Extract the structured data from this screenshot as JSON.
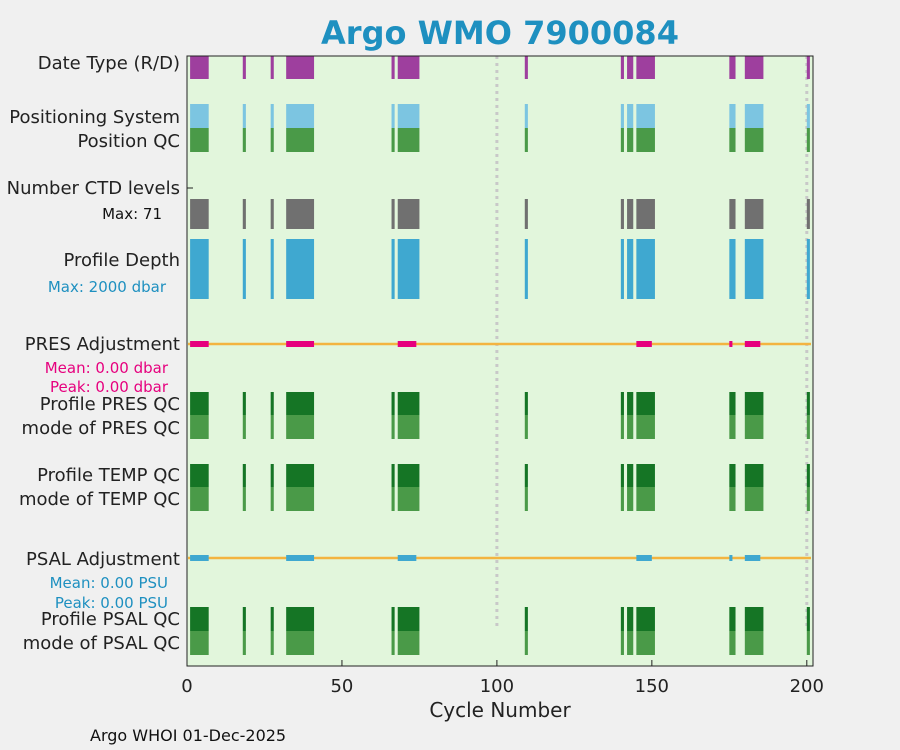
{
  "chart_data": {
    "type": "heatmap",
    "title": "Argo WMO 7900084",
    "xlabel": "Cycle Number",
    "xlim": [
      0,
      202
    ],
    "xticks": [
      0,
      50,
      100,
      150,
      200
    ],
    "footer": "Argo WHOI 01-Dec-2025",
    "dashed_markers": [
      100,
      200
    ],
    "row_labels": {
      "date_type": "Date Type (R/D)",
      "positioning": "Positioning System",
      "position_qc": "Position QC",
      "ctd_levels": "Number CTD levels",
      "ctd_max": "Max: 71",
      "profile_depth": "Profile Depth",
      "depth_max": "Max: 2000 dbar",
      "pres_adj": "PRES Adjustment",
      "pres_mean": "Mean: 0.00 dbar",
      "pres_peak": "Peak: 0.00 dbar",
      "pres_qc": "Profile PRES QC",
      "pres_mode": "mode of PRES QC",
      "temp_qc": "Profile TEMP QC",
      "temp_mode": "mode of TEMP QC",
      "psal_adj": "PSAL Adjustment",
      "psal_mean": "Mean: 0.00 PSU",
      "psal_peak": "Peak: 0.00 PSU",
      "psal_qc": "Profile PSAL QC",
      "psal_mode": "mode of PSAL QC"
    },
    "profile_cycle_ranges": [
      [
        1,
        7
      ],
      [
        18,
        19
      ],
      [
        27,
        28
      ],
      [
        32,
        41
      ],
      [
        66,
        67
      ],
      [
        68,
        75
      ],
      [
        109,
        110
      ],
      [
        140,
        141
      ],
      [
        142,
        144
      ],
      [
        145,
        151
      ],
      [
        175,
        177
      ],
      [
        180,
        186
      ],
      [
        200,
        201
      ]
    ],
    "pres_adjustment_ranges": [
      [
        1,
        7
      ],
      [
        32,
        41
      ],
      [
        68,
        74
      ],
      [
        145,
        150
      ],
      [
        175,
        176
      ],
      [
        180,
        185
      ]
    ],
    "psal_adjustment_ranges": [
      [
        1,
        7
      ],
      [
        32,
        41
      ],
      [
        68,
        74
      ],
      [
        145,
        150
      ],
      [
        175,
        176
      ],
      [
        180,
        185
      ]
    ],
    "pres_adjustment_mean": 0.0,
    "psal_adjustment_mean": 0.0
  },
  "colors": {
    "title": "#1e90c0",
    "plot_bg": "#e2f6dc",
    "date_type": "#9e3f9e",
    "positioning": "#7cc5e1",
    "position_qc": "#4a9a48",
    "ctd_levels": "#707070",
    "profile_depth": "#3fa8d0",
    "pres_adj_line": "#f3b440",
    "pres_adj_bars": "#e6007e",
    "psal_adj_bars": "#3fa8d0",
    "qc_dark": "#157525",
    "qc_mode": "#4a9a48",
    "pink_text": "#e6007e",
    "blue_text": "#1e90c0",
    "grid_dash": "#c8c8c8"
  }
}
